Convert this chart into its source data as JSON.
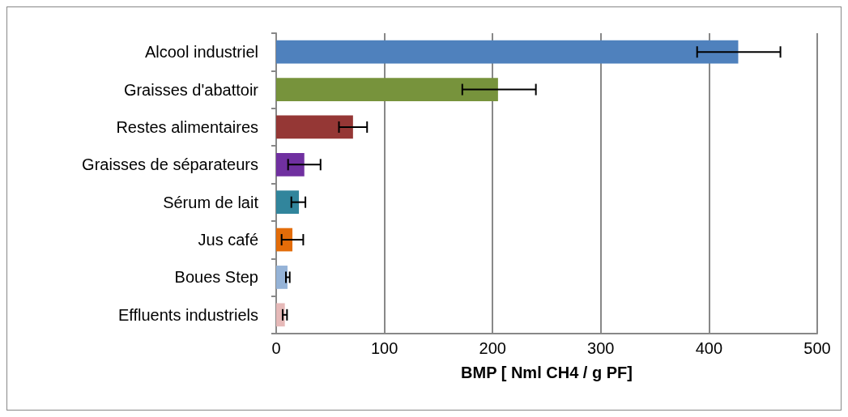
{
  "chart_data": {
    "type": "bar",
    "orientation": "horizontal",
    "xlabel": "BMP [ Nml CH4 / g PF]",
    "categories": [
      "Alcool industriel",
      "Graisses d'abattoir",
      "Restes alimentaires",
      "Graisses de séparateurs",
      "Sérum de lait",
      "Jus café",
      "Boues Step",
      "Effluents industriels"
    ],
    "values": [
      427,
      205,
      71,
      26,
      21,
      15,
      10.5,
      8
    ],
    "colors": [
      "#4f81bd",
      "#77933c",
      "#953735",
      "#7030a0",
      "#31859c",
      "#e36c09",
      "#95b3d7",
      "#e6b9b8"
    ],
    "errors": [
      [
        389,
        466
      ],
      [
        172,
        240
      ],
      [
        58,
        84
      ],
      [
        11,
        41
      ],
      [
        14,
        27
      ],
      [
        5,
        25
      ],
      [
        9,
        12.5
      ],
      [
        6,
        10
      ]
    ],
    "xlim": [
      0,
      500
    ],
    "xticks": [
      0,
      100,
      200,
      300,
      400,
      500
    ],
    "grid": "x"
  }
}
